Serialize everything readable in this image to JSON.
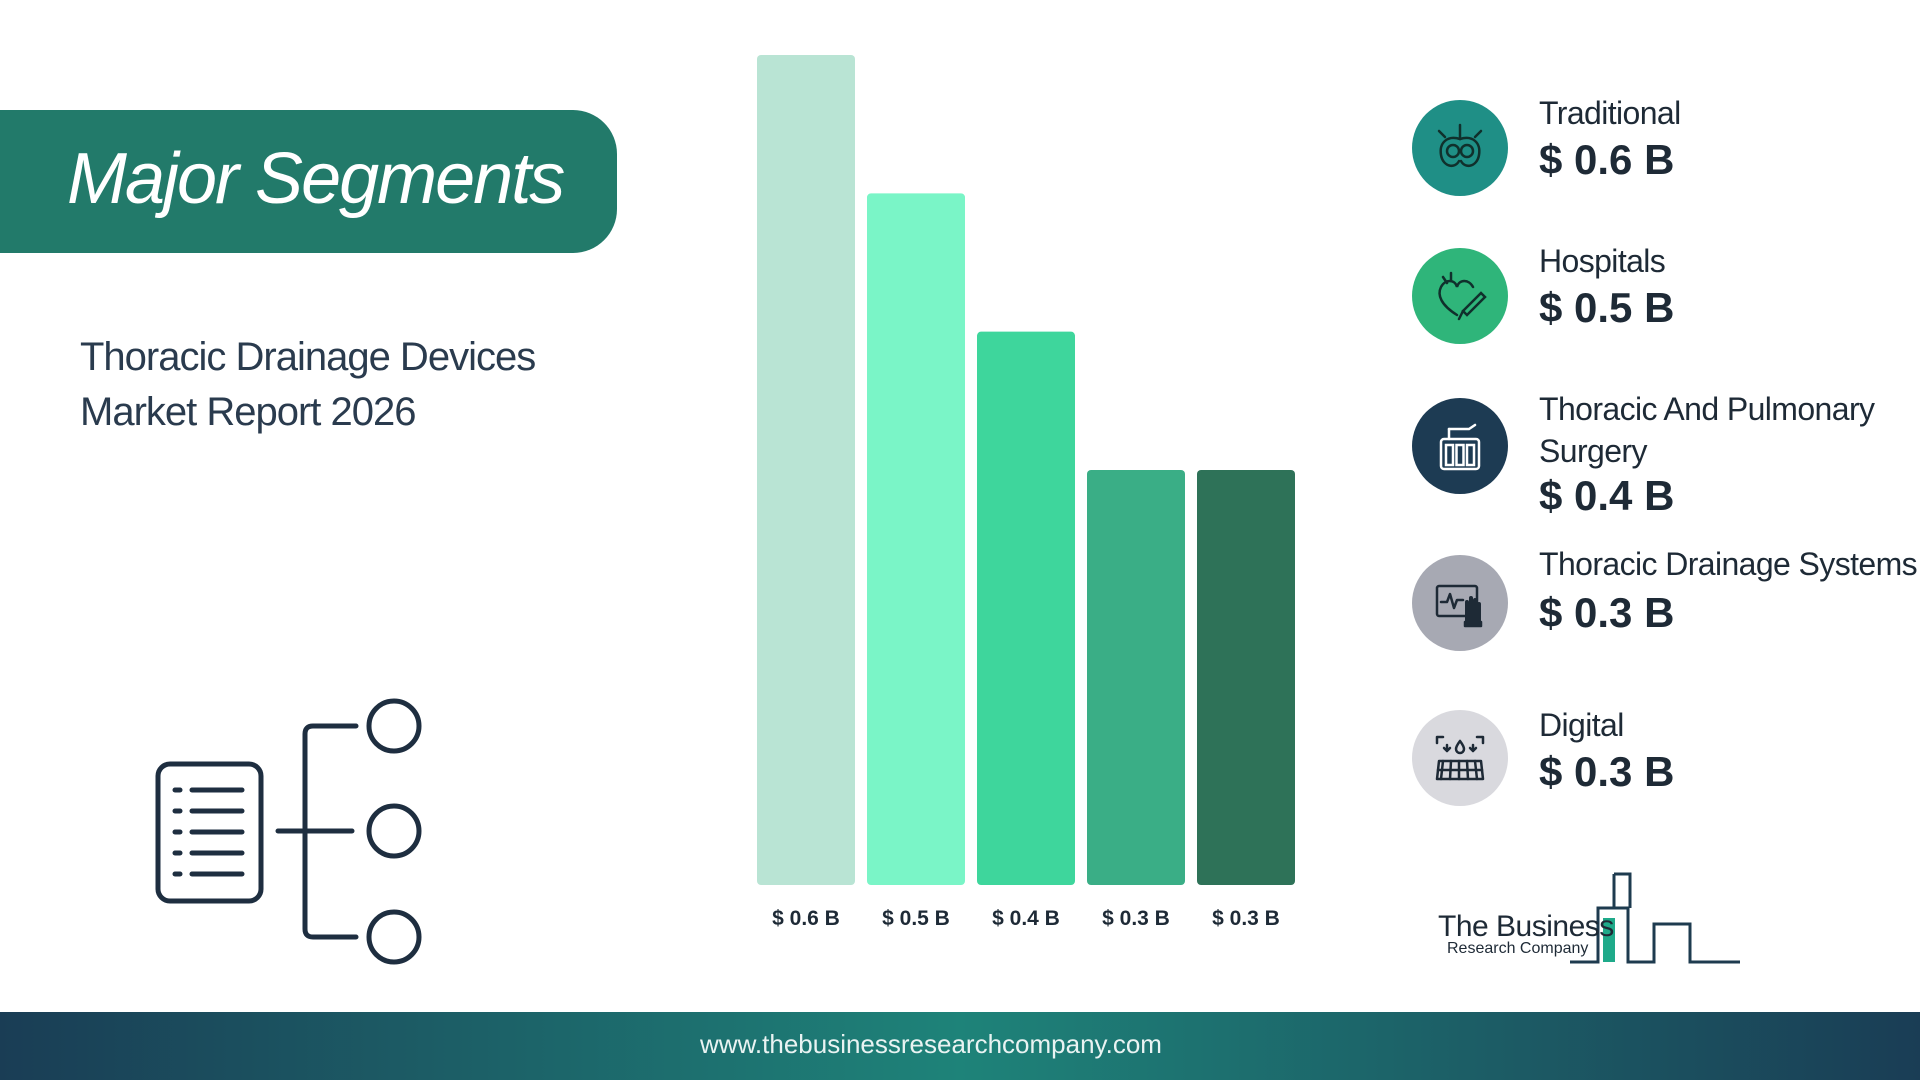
{
  "banner": {
    "title": "Major Segments",
    "color": "#227a6a"
  },
  "report": {
    "line1": "Thoracic Drainage Devices",
    "line2": "Market Report 2026"
  },
  "chart_data": {
    "type": "bar",
    "categories": [
      "Traditional",
      "Hospitals",
      "Thoracic And Pulmonary Surgery",
      "Thoracic Drainage Systems",
      "Digital"
    ],
    "values": [
      0.6,
      0.5,
      0.4,
      0.3,
      0.3
    ],
    "value_labels": [
      "$ 0.6 B",
      "$ 0.5 B",
      "$ 0.4 B",
      "$ 0.3 B",
      "$ 0.3 B"
    ],
    "colors": [
      "#b9e4d4",
      "#7af5c7",
      "#3ed69c",
      "#3aae86",
      "#2e7258"
    ],
    "ylim": [
      0,
      0.6
    ],
    "grid": false,
    "legend": "right"
  },
  "legend": {
    "items": [
      {
        "name": "Traditional",
        "value": "$ 0.6 B",
        "icon": "organ-icon",
        "icon_color": "#1f8f86"
      },
      {
        "name": "Hospitals",
        "value": "$ 0.5 B",
        "icon": "heart-scalpel-icon",
        "icon_color": "#2fb57a"
      },
      {
        "name": "Thoracic And Pulmonary Surgery",
        "value": "$ 0.4 B",
        "icon": "drainage-device-icon",
        "icon_color": "#1d3b53"
      },
      {
        "name": "Thoracic Drainage Systems",
        "value": "$ 0.3 B",
        "icon": "monitor-hand-icon",
        "icon_color": "#a7a9b3"
      },
      {
        "name": "Digital",
        "value": "$ 0.3 B",
        "icon": "keyboard-drops-icon",
        "icon_color": "#d9d9de"
      }
    ]
  },
  "logo": {
    "line1": "The Business",
    "line2": "Research Company"
  },
  "footer": {
    "url": "www.thebusinessresearchcompany.com"
  }
}
